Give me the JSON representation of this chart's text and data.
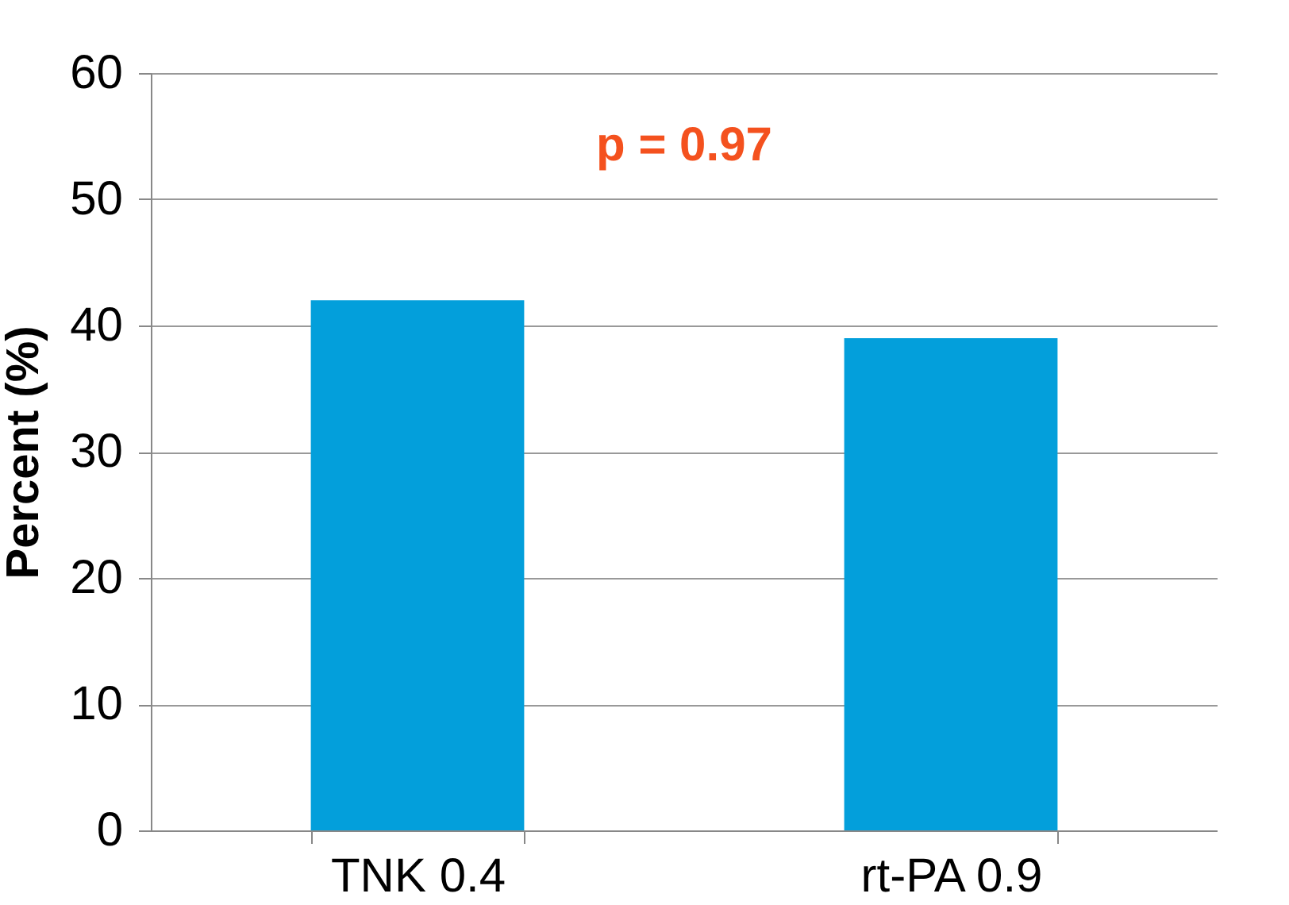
{
  "chart_data": {
    "type": "bar",
    "ylabel": "Percent (%)",
    "categories": [
      "TNK 0.4",
      "rt-PA 0.9"
    ],
    "values": [
      42,
      39
    ],
    "color": "#039fdb",
    "ylim": [
      0,
      60
    ],
    "yticks": [
      0,
      10,
      20,
      30,
      40,
      50,
      60
    ],
    "grid": "y",
    "annotations": [
      "p = 0.97"
    ]
  }
}
